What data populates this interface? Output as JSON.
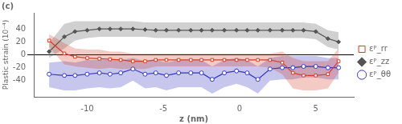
{
  "chart_data": {
    "type": "line",
    "title": "(c)",
    "xlabel": "z (nm)",
    "ylabel": "Plastic strain (10⁻⁴)",
    "xlim": [
      -13.5,
      7.5
    ],
    "ylim": [
      -65,
      65
    ],
    "xticks": [
      -10,
      -5,
      0,
      5
    ],
    "yticks": [
      -40,
      -20,
      0,
      20,
      40
    ],
    "grid": false,
    "legend": "right",
    "x": [
      -12.5,
      -11.5,
      -10.8,
      -10.0,
      -9.2,
      -8.5,
      -7.8,
      -7.0,
      -6.2,
      -5.5,
      -4.8,
      -4.0,
      -3.2,
      -2.5,
      -1.8,
      -1.0,
      -0.2,
      0.5,
      1.2,
      2.0,
      2.8,
      3.5,
      4.2,
      5.0,
      5.8,
      6.5
    ],
    "series": [
      {
        "name": "εᵖ_rr",
        "color": "#d43f2a",
        "marker": "square",
        "values": [
          22,
          2,
          -3,
          -5,
          -6,
          -7,
          -8,
          -10,
          -10,
          -8,
          -8,
          -8,
          -8,
          -8,
          -8,
          -8,
          -8,
          -8,
          -8,
          -8,
          -12,
          -28,
          -32,
          -32,
          -30,
          -10
        ],
        "upper": [
          32,
          18,
          10,
          8,
          8,
          5,
          5,
          2,
          2,
          2,
          2,
          2,
          2,
          2,
          2,
          2,
          2,
          2,
          2,
          2,
          5,
          -5,
          -10,
          -10,
          -10,
          10
        ],
        "lower": [
          12,
          -15,
          -18,
          -20,
          -22,
          -20,
          -22,
          -22,
          -22,
          -18,
          -18,
          -18,
          -18,
          -18,
          -18,
          -18,
          -18,
          -18,
          -18,
          -20,
          -30,
          -52,
          -55,
          -55,
          -52,
          -28
        ]
      },
      {
        "name": "εᵖ_zz",
        "color": "#555555",
        "marker": "diamond",
        "values": [
          5,
          28,
          36,
          38,
          40,
          40,
          40,
          40,
          39,
          38,
          38,
          38,
          38,
          38,
          38,
          38,
          38,
          38,
          38,
          38,
          38,
          38,
          38,
          36,
          25,
          20
        ],
        "upper": [
          18,
          48,
          52,
          52,
          52,
          52,
          52,
          52,
          50,
          50,
          50,
          50,
          50,
          50,
          50,
          50,
          50,
          50,
          50,
          50,
          50,
          50,
          50,
          48,
          38,
          35
        ],
        "lower": [
          -5,
          10,
          22,
          26,
          28,
          28,
          28,
          28,
          28,
          26,
          26,
          26,
          26,
          26,
          26,
          26,
          26,
          26,
          26,
          26,
          26,
          26,
          26,
          24,
          12,
          8
        ]
      },
      {
        "name": "εᵖ_θθ",
        "color": "#3535c0",
        "marker": "circle",
        "values": [
          -30,
          -32,
          -32,
          -30,
          -28,
          -30,
          -28,
          -22,
          -30,
          -28,
          -32,
          -28,
          -28,
          -28,
          -38,
          -28,
          -25,
          -28,
          -38,
          -22,
          -20,
          -20,
          -18,
          -18,
          -20,
          -20
        ],
        "upper": [
          -12,
          -10,
          -12,
          -8,
          -8,
          -8,
          -8,
          -5,
          -10,
          -8,
          -12,
          -8,
          -8,
          -8,
          -18,
          -8,
          -5,
          -8,
          -18,
          -5,
          -2,
          -2,
          -2,
          -2,
          -5,
          -5
        ],
        "lower": [
          -50,
          -55,
          -55,
          -52,
          -50,
          -52,
          -50,
          -40,
          -52,
          -50,
          -55,
          -50,
          -50,
          -50,
          -60,
          -50,
          -45,
          -50,
          -60,
          -40,
          -38,
          -38,
          -35,
          -35,
          -38,
          -38
        ]
      }
    ]
  }
}
